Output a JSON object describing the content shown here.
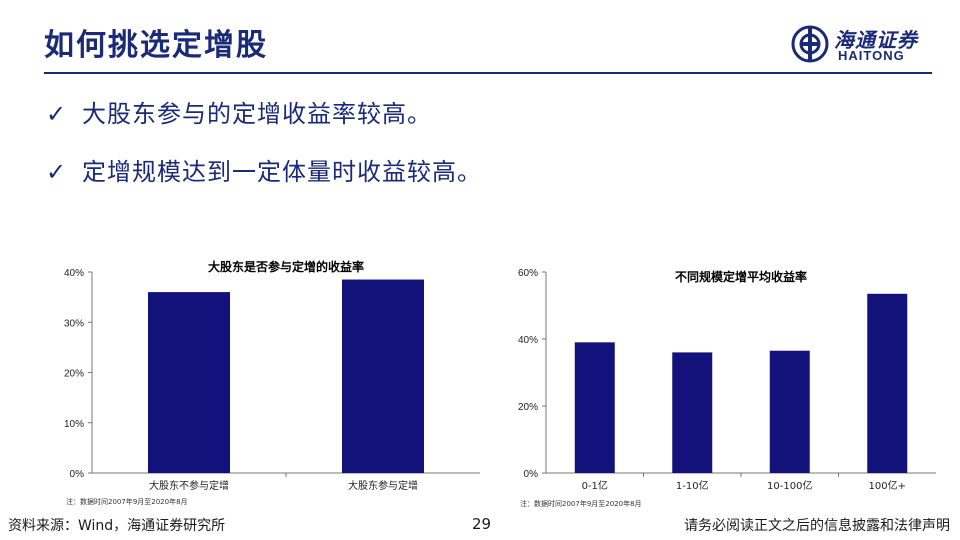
{
  "slide": {
    "title": "如何挑选定增股",
    "bullets": [
      {
        "check": "✓",
        "text": "大股东参与的定增收益率较高。"
      },
      {
        "check": "✓",
        "text": "定增规模达到一定体量时收益较高。"
      }
    ]
  },
  "logo": {
    "cn": "海通证券",
    "en": "HAITONG"
  },
  "colors": {
    "bar": "#12127a",
    "accent": "#1a2a78"
  },
  "chart_data": [
    {
      "type": "bar",
      "title": "大股东是否参与定增的收益率",
      "categories": [
        "大股东不参与定增",
        "大股东参与定增"
      ],
      "values": [
        0.36,
        0.385
      ],
      "yticks": [
        "0%",
        "10%",
        "20%",
        "30%",
        "40%"
      ],
      "ylim": [
        0,
        0.4
      ],
      "note": "注：数据时间2007年9月至2020年8月"
    },
    {
      "type": "bar",
      "title": "不同规模定增平均收益率",
      "categories": [
        "0-1亿",
        "1-10亿",
        "10-100亿",
        "100亿+"
      ],
      "values": [
        0.39,
        0.36,
        0.365,
        0.535
      ],
      "yticks": [
        "0%",
        "20%",
        "40%",
        "60%"
      ],
      "ylim": [
        0,
        0.6
      ],
      "note": "注：数据时间2007年9月至2020年8月"
    }
  ],
  "footer": {
    "source": "资料来源：Wind，海通证券研究所",
    "page": "29",
    "disclaimer": "请务必阅读正文之后的信息披露和法律声明"
  }
}
